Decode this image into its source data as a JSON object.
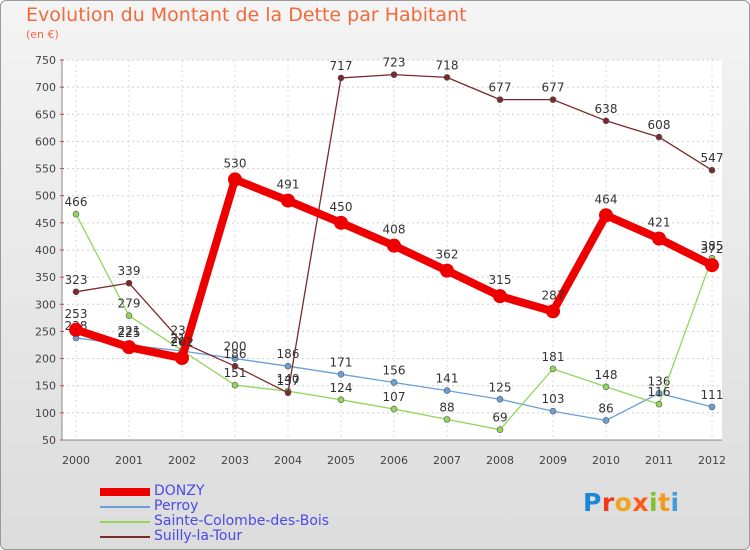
{
  "header": {
    "title": "Evolution du Montant de la Dette par Habitant",
    "unit": "(en €)"
  },
  "logo": {
    "letters": [
      "P",
      "r",
      "o",
      "x",
      "i",
      "t",
      "i"
    ],
    "colors": [
      "#1a86d8",
      "#ee3a16",
      "#f2a320",
      "#ff5a12",
      "#7fc12e",
      "#f39a1d",
      "#3f9de0"
    ]
  },
  "chart_data": {
    "type": "line",
    "x": [
      2000,
      2001,
      2002,
      2003,
      2004,
      2005,
      2006,
      2007,
      2008,
      2009,
      2010,
      2011,
      2012
    ],
    "ylim": [
      50,
      750
    ],
    "yticks": [
      50,
      100,
      150,
      200,
      250,
      300,
      350,
      400,
      450,
      500,
      550,
      600,
      650,
      700,
      750
    ],
    "grid": true,
    "legend_position": "bottom-left",
    "series": [
      {
        "name": "Perroy",
        "color": "#6aa0d6",
        "values": [
          238,
          225,
          214,
          200,
          186,
          171,
          156,
          141,
          125,
          103,
          86,
          136,
          111
        ],
        "labels": [
          "238",
          "225",
          "214",
          "200",
          "186",
          "171",
          "156",
          "141",
          "125",
          "103",
          "86",
          "136",
          "111"
        ]
      },
      {
        "name": "Sainte-Colombe-des-Bois",
        "color": "#92d65c",
        "values": [
          466,
          279,
          215,
          151,
          140,
          124,
          107,
          88,
          69,
          181,
          148,
          116,
          385
        ],
        "labels": [
          "466",
          "279",
          "215",
          "151",
          "140",
          "124",
          "107",
          "88",
          "69",
          "181",
          "148",
          "116",
          "385"
        ]
      },
      {
        "name": "Suilly-la-Tour",
        "color": "#7a2a2a",
        "values": [
          323,
          339,
          230,
          186,
          137,
          717,
          723,
          718,
          677,
          677,
          638,
          608,
          547
        ],
        "labels": [
          "323",
          "339",
          "230",
          "186",
          "137",
          "717",
          "723",
          "718",
          "677",
          "677",
          "638",
          "608",
          "547"
        ]
      },
      {
        "name": "DONZY",
        "color": "#ee0000",
        "values": [
          253,
          221,
          201,
          530,
          491,
          450,
          408,
          362,
          315,
          287,
          464,
          421,
          372
        ],
        "labels": [
          "253",
          "221",
          "201",
          "530",
          "491",
          "450",
          "408",
          "362",
          "315",
          "287",
          "464",
          "421",
          "372"
        ]
      }
    ],
    "legend_order": [
      "DONZY",
      "Perroy",
      "Sainte-Colombe-des-Bois",
      "Suilly-la-Tour"
    ]
  }
}
